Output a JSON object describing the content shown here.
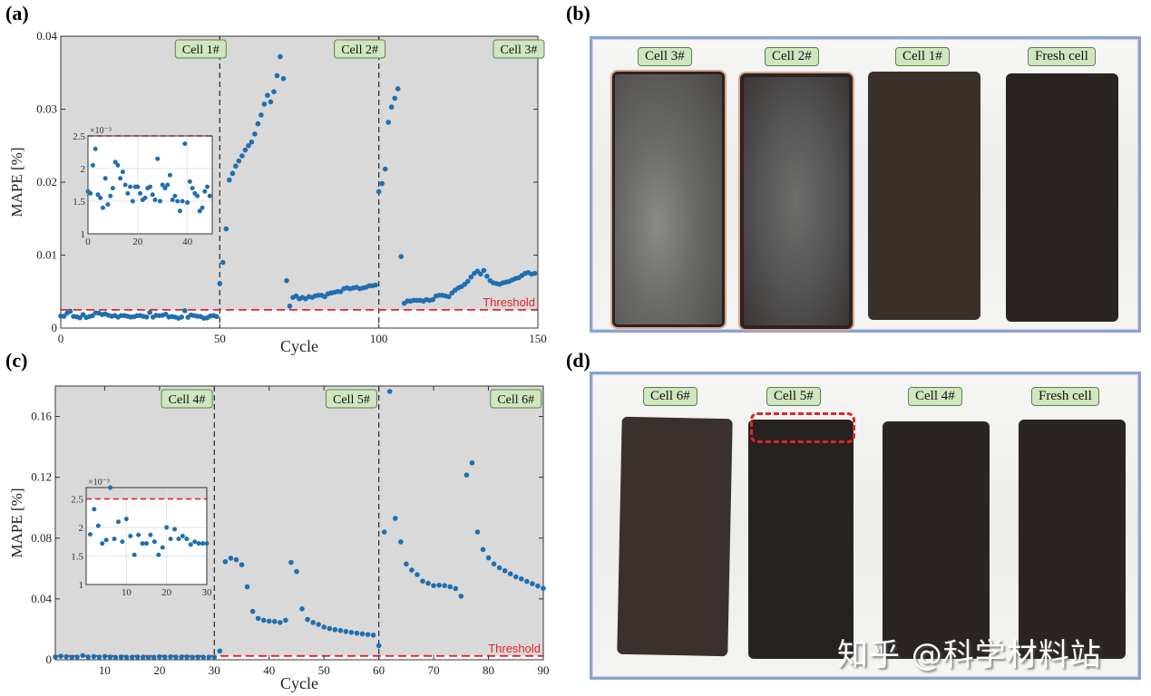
{
  "panels": {
    "a": {
      "label": "(a)"
    },
    "b": {
      "label": "(b)"
    },
    "c": {
      "label": "(c)"
    },
    "d": {
      "label": "(d)"
    }
  },
  "photos": {
    "b": {
      "tags": [
        "Cell 3#",
        "Cell 2#",
        "Cell 1#",
        "Fresh cell"
      ]
    },
    "d": {
      "tags": [
        "Cell 6#",
        "Cell 5#",
        "Cell 4#",
        "Fresh cell"
      ],
      "highlight": "Cell 5# top swelling region (red dashed box)"
    }
  },
  "watermark": "知乎 @科学材料站",
  "colors": {
    "marker": "#1f6fb0",
    "threshold": "#e0242b",
    "plot_bg": "#d9d9d9",
    "tag_bg": "#cfe6bf",
    "frame": "#8ea0cf"
  },
  "chart_data": [
    {
      "id": "a",
      "type": "scatter",
      "title": "",
      "xlabel": "Cycle",
      "ylabel": "MAPE [%]",
      "xlim": [
        0,
        150
      ],
      "ylim": [
        0,
        0.04
      ],
      "xticks": [
        0,
        50,
        100,
        150
      ],
      "yticks": [
        0,
        0.01,
        0.02,
        0.03,
        0.04
      ],
      "ytick_labels": [
        "0",
        "0.01",
        "0.02",
        "0.03",
        "0.04"
      ],
      "threshold": {
        "value": 0.0025,
        "label": "Threshold"
      },
      "dividers": [
        50,
        100
      ],
      "region_labels": [
        {
          "text": "Cell 1#",
          "x": 44
        },
        {
          "text": "Cell 2#",
          "x": 94
        },
        {
          "text": "Cell 3#",
          "x": 144
        }
      ],
      "series": [
        {
          "name": "Cell 1#",
          "x_start": 0,
          "values": [
            0.00165,
            0.00162,
            0.00205,
            0.0023,
            0.0016,
            0.00155,
            0.0014,
            0.00185,
            0.00145,
            0.00158,
            0.0017,
            0.0021,
            0.00205,
            0.00185,
            0.00195,
            0.00175,
            0.00162,
            0.00172,
            0.0015,
            0.00172,
            0.00172,
            0.00162,
            0.00152,
            0.00155,
            0.0017,
            0.00172,
            0.0016,
            0.00152,
            0.00215,
            0.0015,
            0.00175,
            0.0017,
            0.00175,
            0.0019,
            0.00152,
            0.00158,
            0.0015,
            0.00135,
            0.0015,
            0.00238,
            0.00148,
            0.0018,
            0.0017,
            0.00162,
            0.00158,
            0.00135,
            0.0014,
            0.00165,
            0.00172,
            0.00158
          ]
        },
        {
          "name": "Cell 2#",
          "x_start": 50,
          "values": [
            0.0061,
            0.009,
            0.0136,
            0.0203,
            0.0212,
            0.0222,
            0.0229,
            0.0236,
            0.0244,
            0.025,
            0.0255,
            0.0266,
            0.028,
            0.0292,
            0.0307,
            0.0319,
            0.031,
            0.0324,
            0.0346,
            0.0372,
            0.0342,
            0.0065,
            0.003,
            0.0042,
            0.0044,
            0.004,
            0.0042,
            0.004,
            0.0043,
            0.0042,
            0.0044,
            0.0045,
            0.0045,
            0.0043,
            0.0047,
            0.0048,
            0.0049,
            0.005,
            0.005,
            0.0054,
            0.0055,
            0.0054,
            0.0055,
            0.0056,
            0.0054,
            0.0055,
            0.0056,
            0.0058,
            0.0058,
            0.0059
          ]
        },
        {
          "name": "Cell 3#",
          "x_start": 100,
          "values": [
            0.0187,
            0.0198,
            0.0218,
            0.0282,
            0.0303,
            0.0315,
            0.0328,
            0.0098,
            0.0034,
            0.0037,
            0.0037,
            0.0038,
            0.0038,
            0.0038,
            0.0037,
            0.0039,
            0.0038,
            0.0039,
            0.0044,
            0.0045,
            0.0045,
            0.0044,
            0.0043,
            0.0048,
            0.0052,
            0.0055,
            0.0057,
            0.006,
            0.0064,
            0.007,
            0.0075,
            0.0078,
            0.0074,
            0.0079,
            0.0071,
            0.0065,
            0.0062,
            0.0061,
            0.006,
            0.0062,
            0.0063,
            0.0064,
            0.0066,
            0.0068,
            0.0069,
            0.0072,
            0.0075,
            0.0076,
            0.0074,
            0.0075
          ]
        }
      ],
      "inset": {
        "xlim": [
          0,
          50
        ],
        "ylim": [
          1,
          2.5
        ],
        "scale_label": "×10^-3",
        "xticks": [
          0,
          20,
          40
        ],
        "yticks": [
          1,
          1.5,
          2,
          2.5
        ],
        "threshold": 2.5,
        "note": "zoom of Cell 1# values (×10^-3)"
      }
    },
    {
      "id": "c",
      "type": "scatter",
      "title": "",
      "xlabel": "Cycle",
      "ylabel": "MAPE [%]",
      "xlim": [
        1,
        90
      ],
      "ylim": [
        0,
        0.18
      ],
      "xticks": [
        10,
        20,
        30,
        40,
        50,
        60,
        70,
        80,
        90
      ],
      "yticks": [
        0,
        0.04,
        0.08,
        0.12,
        0.16
      ],
      "ytick_labels": [
        "0",
        "0.04",
        "0.08",
        "0.12",
        "0.16"
      ],
      "threshold": {
        "value": 0.0025,
        "label": "Threshold"
      },
      "dividers": [
        30,
        60
      ],
      "region_labels": [
        {
          "text": "Cell 4#",
          "x": 25
        },
        {
          "text": "Cell 5#",
          "x": 55
        },
        {
          "text": "Cell 6#",
          "x": 85
        }
      ],
      "series": [
        {
          "name": "Cell 4#",
          "x_start": 1,
          "values": [
            0.00188,
            0.00232,
            0.00203,
            0.00172,
            0.00178,
            0.0027,
            0.0018,
            0.0021,
            0.00175,
            0.00215,
            0.00185,
            0.00152,
            0.00187,
            0.00172,
            0.00172,
            0.00187,
            0.00175,
            0.00152,
            0.00165,
            0.002,
            0.0018,
            0.00197,
            0.0018,
            0.00185,
            0.0018,
            0.0017,
            0.00175,
            0.00172,
            0.00172,
            0.00172
          ]
        },
        {
          "name": "Cell 5#",
          "x_start": 31,
          "values": [
            0.0058,
            0.0645,
            0.0668,
            0.0658,
            0.0625,
            0.048,
            0.0318,
            0.0272,
            0.026,
            0.0254,
            0.0252,
            0.0245,
            0.026,
            0.064,
            0.058,
            0.0335,
            0.0265,
            0.0245,
            0.0232,
            0.0215,
            0.0205,
            0.0198,
            0.0192,
            0.0186,
            0.018,
            0.0175,
            0.017,
            0.0166,
            0.0162,
            0.0093
          ]
        },
        {
          "name": "Cell 6#",
          "x_start": 61,
          "values": [
            0.084,
            0.1765,
            0.093,
            0.0775,
            0.063,
            0.059,
            0.056,
            0.0517,
            0.0503,
            0.0488,
            0.049,
            0.0488,
            0.048,
            0.0468,
            0.0418,
            0.1215,
            0.1295,
            0.084,
            0.0725,
            0.067,
            0.063,
            0.0605,
            0.0585,
            0.0565,
            0.0545,
            0.0532,
            0.0515,
            0.05,
            0.0485,
            0.047
          ]
        }
      ],
      "inset": {
        "xlim": [
          0,
          30
        ],
        "ylim": [
          1,
          2.7
        ],
        "scale_label": "×10^-3",
        "xticks": [
          10,
          20,
          30
        ],
        "yticks": [
          1,
          1.5,
          2,
          2.5
        ],
        "threshold": 2.5,
        "note": "zoom of Cell 4# values (×10^-3)"
      }
    }
  ]
}
